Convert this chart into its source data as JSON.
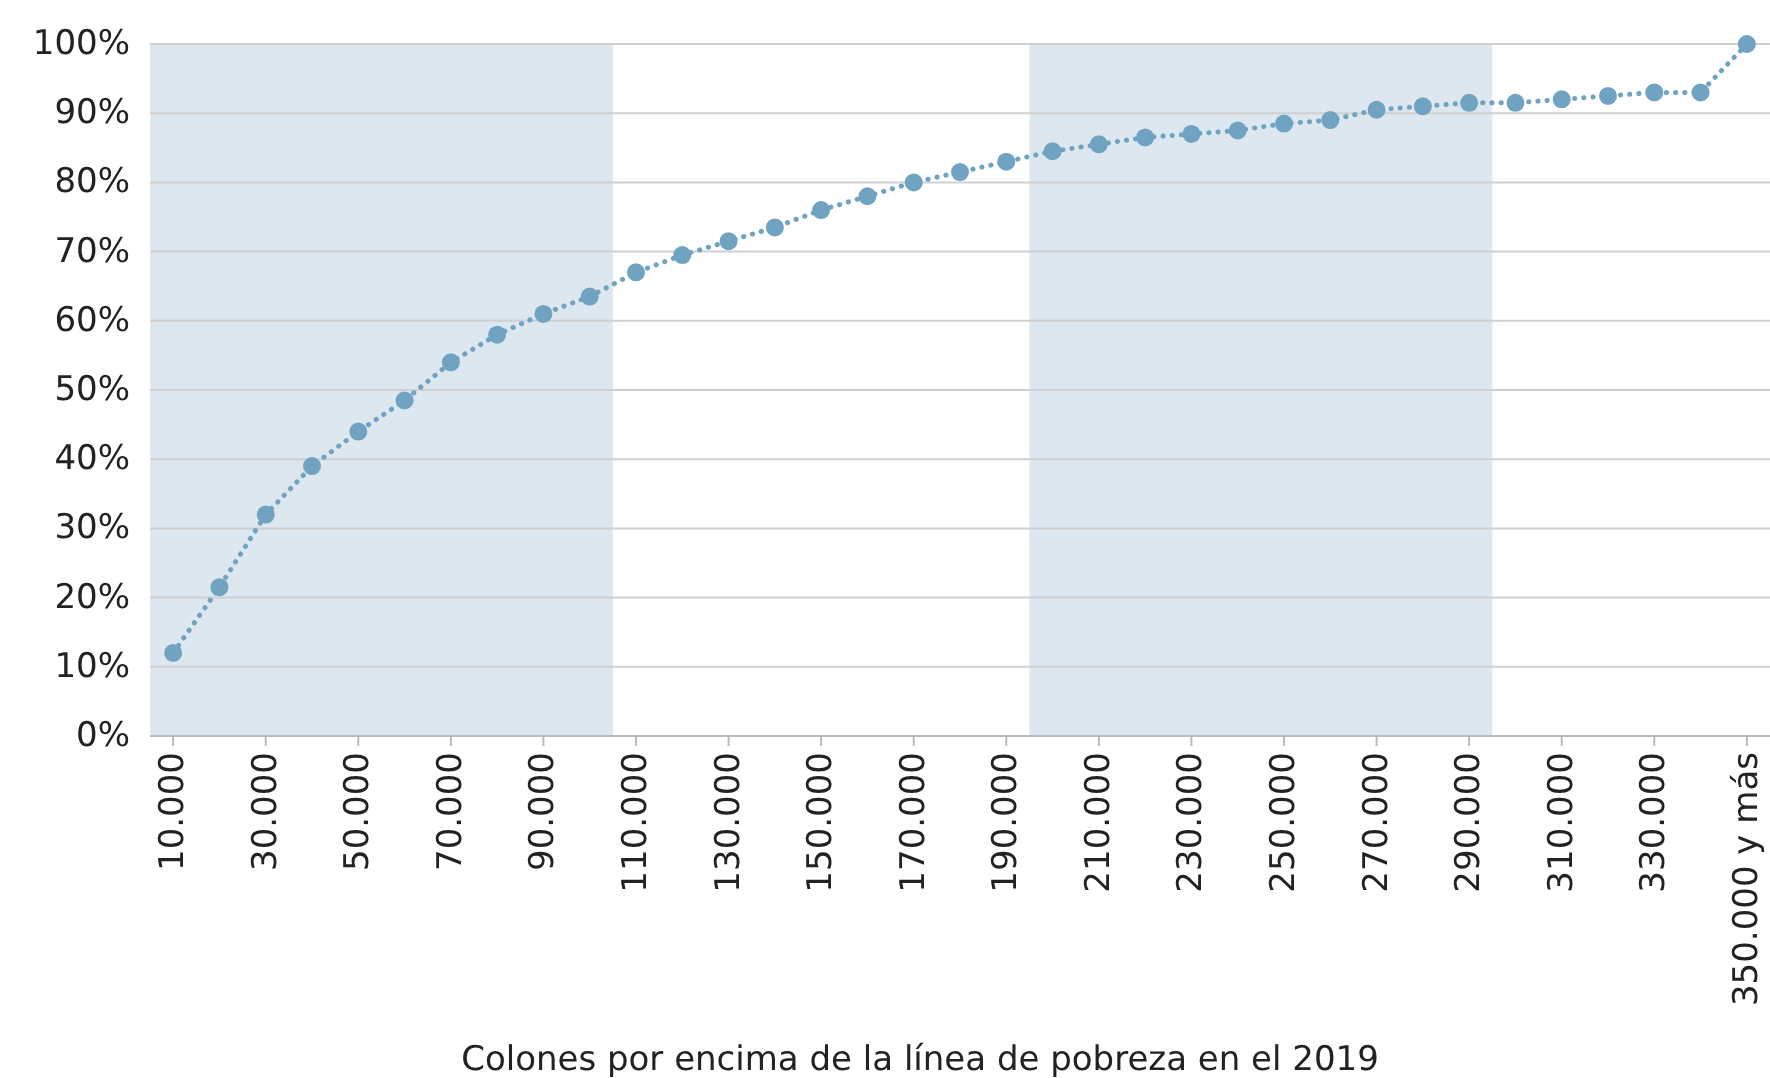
{
  "chart_data": {
    "type": "line",
    "xlabel": "Colones por encima de la línea de pobreza en el 2019",
    "x": [
      10000,
      20000,
      30000,
      40000,
      50000,
      60000,
      70000,
      80000,
      90000,
      100000,
      110000,
      120000,
      130000,
      140000,
      150000,
      160000,
      170000,
      180000,
      190000,
      200000,
      210000,
      220000,
      230000,
      240000,
      250000,
      260000,
      270000,
      280000,
      290000,
      300000,
      310000,
      320000,
      330000,
      340000,
      350000
    ],
    "xlim": [
      5000,
      355000
    ],
    "xticks": [
      {
        "value": 10000,
        "label": "10.000"
      },
      {
        "value": 30000,
        "label": "30.000"
      },
      {
        "value": 50000,
        "label": "50.000"
      },
      {
        "value": 70000,
        "label": "70.000"
      },
      {
        "value": 90000,
        "label": "90.000"
      },
      {
        "value": 110000,
        "label": "110.000"
      },
      {
        "value": 130000,
        "label": "130.000"
      },
      {
        "value": 150000,
        "label": "150.000"
      },
      {
        "value": 170000,
        "label": "170.000"
      },
      {
        "value": 190000,
        "label": "190.000"
      },
      {
        "value": 210000,
        "label": "210.000"
      },
      {
        "value": 230000,
        "label": "230.000"
      },
      {
        "value": 250000,
        "label": "250.000"
      },
      {
        "value": 270000,
        "label": "270.000"
      },
      {
        "value": 290000,
        "label": "290.000"
      },
      {
        "value": 310000,
        "label": "310.000"
      },
      {
        "value": 330000,
        "label": "330.000"
      },
      {
        "value": 350000,
        "label": "350.000 y más"
      }
    ],
    "series": [
      {
        "color": "#6fa3c1",
        "values": [
          12,
          21.5,
          32,
          39,
          44,
          48.5,
          54,
          58,
          61,
          63.5,
          67,
          69.5,
          71.5,
          73.5,
          76,
          78,
          80,
          81.5,
          83,
          84.5,
          85.5,
          86.5,
          87,
          87.5,
          88.5,
          89,
          90.5,
          91,
          91.5,
          91.5,
          92,
          92.5,
          93,
          93,
          100
        ]
      }
    ],
    "ylim": [
      0,
      100
    ],
    "yticks": [
      {
        "value": 0,
        "label": "0%"
      },
      {
        "value": 10,
        "label": "10%"
      },
      {
        "value": 20,
        "label": "20%"
      },
      {
        "value": 30,
        "label": "30%"
      },
      {
        "value": 40,
        "label": "40%"
      },
      {
        "value": 50,
        "label": "50%"
      },
      {
        "value": 60,
        "label": "60%"
      },
      {
        "value": 70,
        "label": "70%"
      },
      {
        "value": 80,
        "label": "80%"
      },
      {
        "value": 90,
        "label": "90%"
      },
      {
        "value": 100,
        "label": "100%"
      }
    ],
    "bands": [
      {
        "axis": "x",
        "from": 5000,
        "to": 105000,
        "color": "#dde7f0"
      },
      {
        "axis": "x",
        "from": 195000,
        "to": 295000,
        "color": "#dde7f0"
      }
    ],
    "grid": "y",
    "marker": "circle",
    "line_style": "dotted"
  }
}
